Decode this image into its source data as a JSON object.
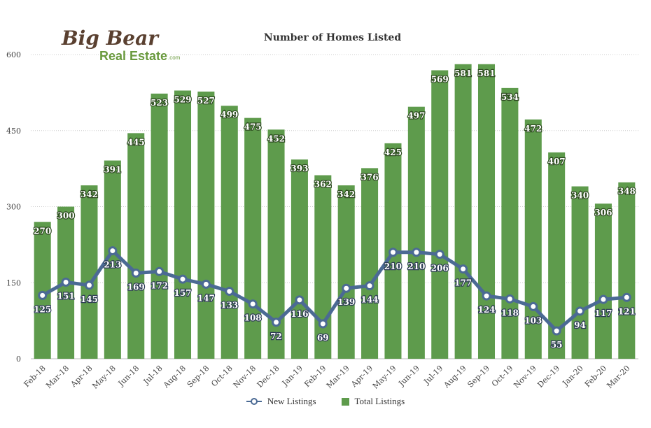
{
  "chart_data": {
    "type": "bar",
    "title": "Number of Homes Listed",
    "categories": [
      "Feb-18",
      "Mar-18",
      "Apr-18",
      "May-18",
      "Jun-18",
      "Jul-18",
      "Aug-18",
      "Sep-18",
      "Oct-18",
      "Nov-18",
      "Dec-18",
      "Jan-19",
      "Feb-19",
      "Mar-19",
      "Apr-19",
      "May-19",
      "Jun-19",
      "Jul-19",
      "Aug-19",
      "Sep-19",
      "Oct-19",
      "Nov-19",
      "Dec-19",
      "Jan-20",
      "Feb-20",
      "Mar-20"
    ],
    "series": [
      {
        "name": "Total Listings",
        "type": "bar",
        "color": "#5e9b4c",
        "values": [
          270,
          300,
          342,
          391,
          445,
          523,
          529,
          527,
          499,
          475,
          452,
          393,
          362,
          342,
          376,
          425,
          497,
          569,
          581,
          581,
          534,
          472,
          407,
          340,
          306,
          348
        ]
      },
      {
        "name": "New Listings",
        "type": "line",
        "color": "#4b6a94",
        "values": [
          125,
          151,
          145,
          213,
          169,
          172,
          157,
          147,
          133,
          108,
          72,
          116,
          69,
          139,
          144,
          210,
          210,
          206,
          177,
          124,
          118,
          103,
          55,
          94,
          117,
          121
        ]
      }
    ],
    "yticks": [
      0,
      150,
      300,
      450,
      600
    ],
    "ylim": [
      0,
      600
    ],
    "grid": true,
    "legend_position": "bottom"
  },
  "logo": {
    "line1": "Big Bear",
    "line2": "Real Estate",
    "suffix": ".com"
  }
}
